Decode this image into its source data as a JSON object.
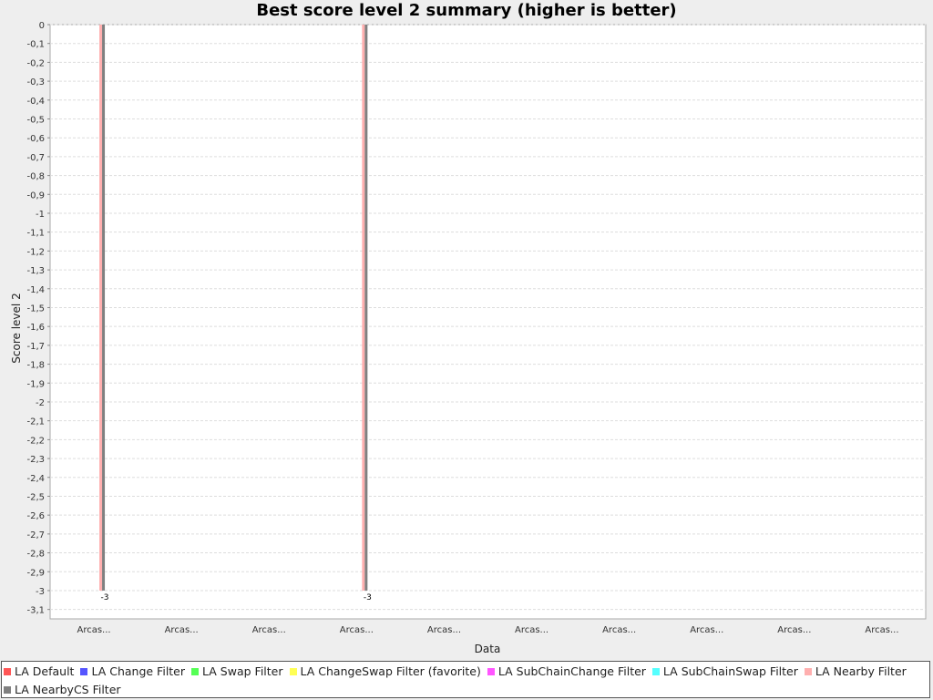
{
  "chart_data": {
    "type": "bar",
    "title": "Best score level 2 summary (higher is better)",
    "xlabel": "Data",
    "ylabel": "Score level 2",
    "categories": [
      "Arcas...",
      "Arcas...",
      "Arcas...",
      "Arcas...",
      "Arcas...",
      "Arcas...",
      "Arcas...",
      "Arcas...",
      "Arcas...",
      "Arcas..."
    ],
    "ylim": [
      -3.15,
      0
    ],
    "yticks": [
      "0",
      "-0,1",
      "-0,2",
      "-0,3",
      "-0,4",
      "-0,5",
      "-0,6",
      "-0,7",
      "-0,8",
      "-0,9",
      "-1",
      "-1,1",
      "-1,2",
      "-1,3",
      "-1,4",
      "-1,5",
      "-1,6",
      "-1,7",
      "-1,8",
      "-1,9",
      "-2",
      "-2,1",
      "-2,2",
      "-2,3",
      "-2,4",
      "-2,5",
      "-2,6",
      "-2,7",
      "-2,8",
      "-2,9",
      "-3",
      "-3,1"
    ],
    "grid": true,
    "legend_position": "bottom",
    "series": [
      {
        "name": "LA Default",
        "color": "#ff5555",
        "values": [
          null,
          null,
          null,
          null,
          null,
          null,
          null,
          null,
          null,
          null
        ]
      },
      {
        "name": "LA Change Filter",
        "color": "#5555ff",
        "values": [
          null,
          null,
          null,
          null,
          null,
          null,
          null,
          null,
          null,
          null
        ]
      },
      {
        "name": "LA Swap Filter",
        "color": "#55ff55",
        "values": [
          null,
          null,
          null,
          null,
          null,
          null,
          null,
          null,
          null,
          null
        ]
      },
      {
        "name": "LA ChangeSwap Filter (favorite)",
        "color": "#ffff55",
        "values": [
          null,
          null,
          null,
          null,
          null,
          null,
          null,
          null,
          null,
          null
        ]
      },
      {
        "name": "LA SubChainChange Filter",
        "color": "#ff55ff",
        "values": [
          null,
          null,
          null,
          null,
          null,
          null,
          null,
          null,
          null,
          null
        ]
      },
      {
        "name": "LA SubChainSwap Filter",
        "color": "#55ffff",
        "values": [
          null,
          null,
          null,
          null,
          null,
          null,
          null,
          null,
          null,
          null
        ]
      },
      {
        "name": "LA Nearby Filter",
        "color": "#ffafaf",
        "values": [
          -3,
          null,
          null,
          -3,
          null,
          null,
          null,
          null,
          null,
          null
        ]
      },
      {
        "name": "LA NearbyCS Filter",
        "color": "#808080",
        "values": [
          -3,
          null,
          null,
          -3,
          null,
          null,
          null,
          null,
          null,
          null
        ]
      }
    ],
    "data_labels": [
      {
        "category_index": 0,
        "text": "-3"
      },
      {
        "category_index": 3,
        "text": "-3"
      }
    ]
  }
}
